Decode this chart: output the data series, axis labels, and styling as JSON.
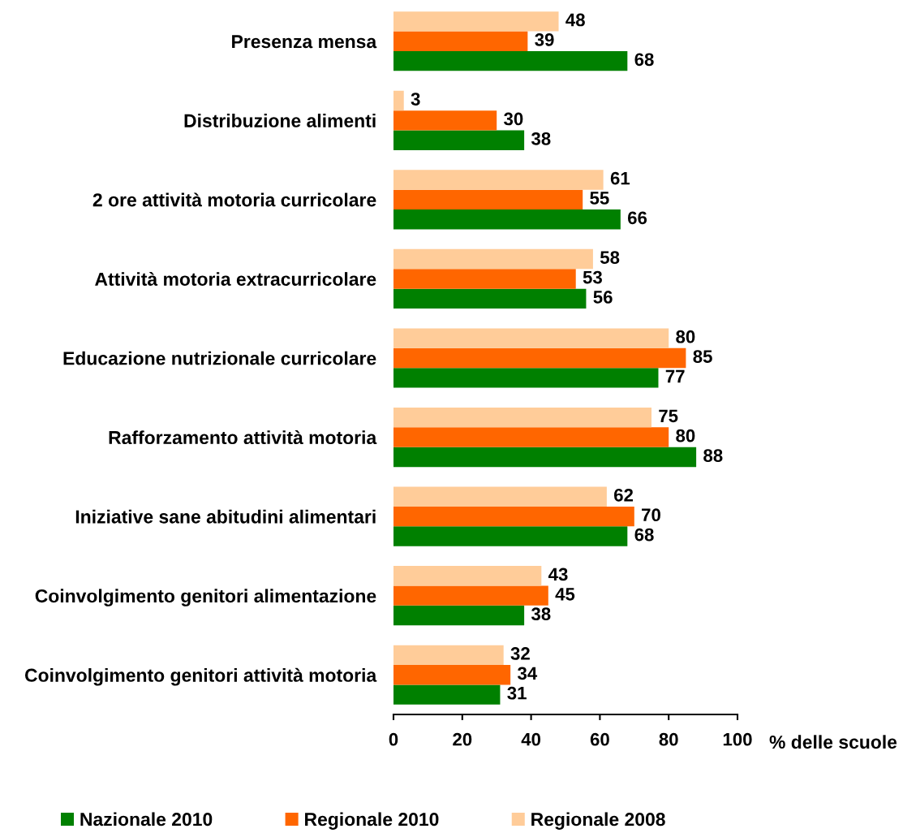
{
  "chart_data": {
    "type": "bar",
    "orientation": "horizontal",
    "categories": [
      "Presenza mensa",
      "Distribuzione alimenti",
      "2 ore attività motoria curricolare",
      "Attività motoria extracurricolare",
      "Educazione nutrizionale curricolare",
      "Rafforzamento attività motoria",
      "Iniziative sane abitudini alimentari",
      "Coinvolgimento genitori alimentazione",
      "Coinvolgimento genitori attività motoria"
    ],
    "series": [
      {
        "name": "Nazionale 2010",
        "color": "#008000",
        "values": [
          68,
          38,
          66,
          56,
          77,
          88,
          68,
          38,
          31
        ]
      },
      {
        "name": "Regionale 2010",
        "color": "#ff6600",
        "values": [
          39,
          30,
          55,
          53,
          85,
          80,
          70,
          45,
          34
        ]
      },
      {
        "name": "Regionale 2008",
        "color": "#ffcc99",
        "values": [
          48,
          3,
          61,
          58,
          80,
          75,
          62,
          43,
          32
        ]
      }
    ],
    "xlim": [
      0,
      100
    ],
    "xticks": [
      0,
      20,
      40,
      60,
      80,
      100
    ],
    "xlabel": "% delle scuole",
    "data_labels": true,
    "legend": "bottom"
  }
}
